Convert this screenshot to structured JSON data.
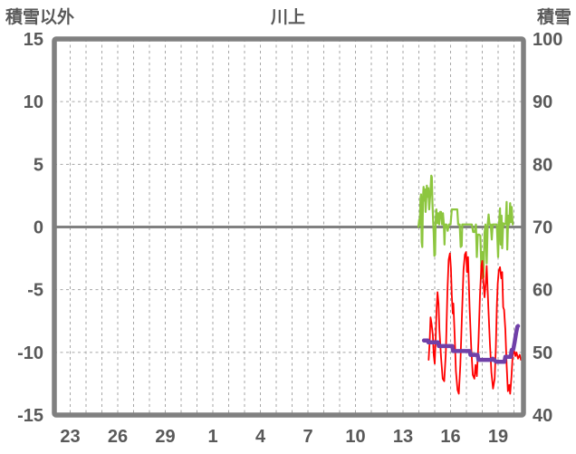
{
  "header": {
    "left_axis_title": "積雪以外",
    "title": "川上",
    "right_axis_title": "積雪"
  },
  "colors": {
    "text": "#595959",
    "frame": "#808080",
    "grid": "#A6A6A6",
    "zero_line": "#808080",
    "green": "#8DC63F",
    "red": "#FF0000",
    "purple": "#7040A8",
    "background": "#FFFFFF"
  },
  "chart_data": {
    "type": "line",
    "title": "川上",
    "left_axis": {
      "title": "積雪以外",
      "range": [
        -15,
        15
      ],
      "ticks": [
        15,
        10,
        5,
        0,
        -5,
        -10,
        -15
      ]
    },
    "right_axis": {
      "title": "積雪",
      "range": [
        40,
        100
      ],
      "ticks": [
        100,
        90,
        80,
        70,
        60,
        50,
        40
      ]
    },
    "x_axis": {
      "domain": [
        0,
        29.6
      ],
      "gridline_count": 29,
      "tick_positions": [
        1,
        4,
        7,
        10,
        13,
        16,
        19,
        22,
        25,
        28
      ],
      "tick_labels": [
        "23",
        "26",
        "29",
        "1",
        "4",
        "7",
        "10",
        "13",
        "16",
        "19"
      ]
    },
    "zero_line_value": 0,
    "grid": true,
    "legend": "none",
    "series": [
      {
        "name": "series-green",
        "axis": "left",
        "color_key": "green",
        "width": 2.2,
        "points": [
          [
            22.97,
            0.0
          ],
          [
            23.02,
            0.6
          ],
          [
            23.06,
            0.2
          ],
          [
            23.1,
            2.3
          ],
          [
            23.14,
            2.6
          ],
          [
            23.18,
            -1.2
          ],
          [
            23.22,
            -1.6
          ],
          [
            23.26,
            2.4
          ],
          [
            23.3,
            3.2
          ],
          [
            23.34,
            2.1
          ],
          [
            23.38,
            3.0
          ],
          [
            23.42,
            1.2
          ],
          [
            23.46,
            2.1
          ],
          [
            23.5,
            3.3
          ],
          [
            23.55,
            2.4
          ],
          [
            23.6,
            3.1
          ],
          [
            23.65,
            1.4
          ],
          [
            23.72,
            2.6
          ],
          [
            23.78,
            4.1
          ],
          [
            23.82,
            4.0
          ],
          [
            23.86,
            1.9
          ],
          [
            23.9,
            0.6
          ],
          [
            23.94,
            -0.5
          ],
          [
            23.98,
            -2.3
          ],
          [
            24.02,
            -2.2
          ],
          [
            24.06,
            0.4
          ],
          [
            24.1,
            1.4
          ],
          [
            24.16,
            0.3
          ],
          [
            24.22,
            1.1
          ],
          [
            24.28,
            0.2
          ],
          [
            24.34,
            1.2
          ],
          [
            24.4,
            1.2
          ],
          [
            24.46,
            0.2
          ],
          [
            24.52,
            1.1
          ],
          [
            24.58,
            0.2
          ],
          [
            24.62,
            -1.4
          ],
          [
            24.66,
            0.2
          ],
          [
            24.74,
            0.2
          ],
          [
            24.82,
            -0.3
          ],
          [
            24.9,
            0.2
          ],
          [
            25.0,
            0.2
          ],
          [
            25.08,
            1.4
          ],
          [
            25.2,
            1.4
          ],
          [
            25.32,
            1.4
          ],
          [
            25.42,
            1.4
          ],
          [
            25.48,
            0.2
          ],
          [
            25.58,
            0.2
          ],
          [
            25.64,
            -1.6
          ],
          [
            25.7,
            -1.5
          ],
          [
            25.74,
            0.2
          ],
          [
            25.84,
            0.2
          ],
          [
            25.94,
            0.2
          ],
          [
            26.04,
            0.2
          ],
          [
            26.14,
            0.2
          ],
          [
            26.24,
            0.2
          ],
          [
            26.34,
            0.2
          ],
          [
            26.42,
            -0.4
          ],
          [
            26.52,
            -0.4
          ],
          [
            26.6,
            0.2
          ],
          [
            26.66,
            -2.4
          ],
          [
            26.72,
            -0.6
          ],
          [
            26.8,
            -0.6
          ],
          [
            26.88,
            -0.7
          ],
          [
            26.96,
            -4.1
          ],
          [
            27.02,
            -2.0
          ],
          [
            27.08,
            -4.0
          ],
          [
            27.14,
            -0.5
          ],
          [
            27.2,
            0.2
          ],
          [
            27.28,
            -2.9
          ],
          [
            27.34,
            0.2
          ],
          [
            27.4,
            1.0
          ],
          [
            27.46,
            0.2
          ],
          [
            27.54,
            0.2
          ],
          [
            27.6,
            -1.0
          ],
          [
            27.66,
            0.2
          ],
          [
            27.74,
            0.2
          ],
          [
            27.84,
            0.2
          ],
          [
            27.92,
            0.2
          ],
          [
            28.0,
            -2.4
          ],
          [
            28.06,
            0.2
          ],
          [
            28.12,
            1.5
          ],
          [
            28.16,
            -1.4
          ],
          [
            28.22,
            0.9
          ],
          [
            28.26,
            -1.7
          ],
          [
            28.32,
            0.3
          ],
          [
            28.4,
            0.2
          ],
          [
            28.48,
            0.3
          ],
          [
            28.54,
            2.0
          ],
          [
            28.58,
            -1.8
          ],
          [
            28.64,
            0.9
          ],
          [
            28.7,
            0.2
          ],
          [
            28.76,
            1.9
          ],
          [
            28.82,
            0.4
          ],
          [
            28.86,
            1.6
          ],
          [
            28.92,
            0.2
          ]
        ]
      },
      {
        "name": "series-red",
        "axis": "left",
        "color_key": "red",
        "width": 1.8,
        "points": [
          [
            23.62,
            -10.6
          ],
          [
            23.68,
            -9.2
          ],
          [
            23.74,
            -7.2
          ],
          [
            23.8,
            -7.7
          ],
          [
            23.88,
            -8.6
          ],
          [
            23.94,
            -10.2
          ],
          [
            24.0,
            -10.9
          ],
          [
            24.06,
            -9.0
          ],
          [
            24.12,
            -6.5
          ],
          [
            24.18,
            -5.2
          ],
          [
            24.24,
            -6.1
          ],
          [
            24.3,
            -8.2
          ],
          [
            24.4,
            -10.4
          ],
          [
            24.5,
            -12.1
          ],
          [
            24.6,
            -12.3
          ],
          [
            24.7,
            -10.0
          ],
          [
            24.8,
            -5.2
          ],
          [
            24.88,
            -2.6
          ],
          [
            24.96,
            -2.1
          ],
          [
            25.02,
            -3.3
          ],
          [
            25.08,
            -5.5
          ],
          [
            25.14,
            -6.9
          ],
          [
            25.18,
            -6.1
          ],
          [
            25.26,
            -8.8
          ],
          [
            25.34,
            -11.5
          ],
          [
            25.44,
            -13.0
          ],
          [
            25.52,
            -13.3
          ],
          [
            25.62,
            -11.0
          ],
          [
            25.72,
            -7.0
          ],
          [
            25.82,
            -3.4
          ],
          [
            25.9,
            -2.2
          ],
          [
            25.98,
            -2.0
          ],
          [
            26.04,
            -3.6
          ],
          [
            26.1,
            -2.4
          ],
          [
            26.2,
            -6.4
          ],
          [
            26.3,
            -9.6
          ],
          [
            26.4,
            -11.8
          ],
          [
            26.5,
            -12.1
          ],
          [
            26.58,
            -11.0
          ],
          [
            26.66,
            -11.9
          ],
          [
            26.76,
            -9.2
          ],
          [
            26.86,
            -5.4
          ],
          [
            26.94,
            -3.1
          ],
          [
            27.0,
            -2.7
          ],
          [
            27.06,
            -4.1
          ],
          [
            27.14,
            -5.6
          ],
          [
            27.22,
            -4.5
          ],
          [
            27.28,
            -3.1
          ],
          [
            27.38,
            -6.2
          ],
          [
            27.48,
            -9.2
          ],
          [
            27.58,
            -11.6
          ],
          [
            27.68,
            -12.9
          ],
          [
            27.78,
            -12.1
          ],
          [
            27.86,
            -9.6
          ],
          [
            27.92,
            -6.3
          ],
          [
            27.98,
            -4.5
          ],
          [
            28.04,
            -3.5
          ],
          [
            28.12,
            -3.2
          ],
          [
            28.2,
            -4.1
          ],
          [
            28.26,
            -3.6
          ],
          [
            28.32,
            -6.4
          ],
          [
            28.38,
            -6.6
          ],
          [
            28.46,
            -8.2
          ],
          [
            28.54,
            -11.0
          ],
          [
            28.62,
            -13.1
          ],
          [
            28.7,
            -12.6
          ],
          [
            28.76,
            -13.3
          ],
          [
            28.84,
            -12.0
          ],
          [
            28.92,
            -10.2
          ],
          [
            29.0,
            -9.8
          ],
          [
            29.08,
            -10.3
          ],
          [
            29.16,
            -10.0
          ],
          [
            29.26,
            -10.5
          ],
          [
            29.36,
            -10.2
          ],
          [
            29.44,
            -10.6
          ]
        ]
      },
      {
        "name": "series-snow-depth",
        "axis": "right",
        "color_key": "purple",
        "width": 4.5,
        "points": [
          [
            23.32,
            51.9
          ],
          [
            23.56,
            51.9
          ],
          [
            23.6,
            51.6
          ],
          [
            24.2,
            51.6
          ],
          [
            24.26,
            51.0
          ],
          [
            25.1,
            51.0
          ],
          [
            25.16,
            50.2
          ],
          [
            26.2,
            50.2
          ],
          [
            26.26,
            49.6
          ],
          [
            26.7,
            49.6
          ],
          [
            26.76,
            48.8
          ],
          [
            27.6,
            48.8
          ],
          [
            27.66,
            49.0
          ],
          [
            27.88,
            48.5
          ],
          [
            28.4,
            48.5
          ],
          [
            28.46,
            49.3
          ],
          [
            28.8,
            49.3
          ],
          [
            28.86,
            50.4
          ],
          [
            28.96,
            50.5
          ],
          [
            29.04,
            51.6
          ],
          [
            29.14,
            53.2
          ],
          [
            29.22,
            54.1
          ],
          [
            29.26,
            54.2
          ]
        ]
      }
    ]
  }
}
